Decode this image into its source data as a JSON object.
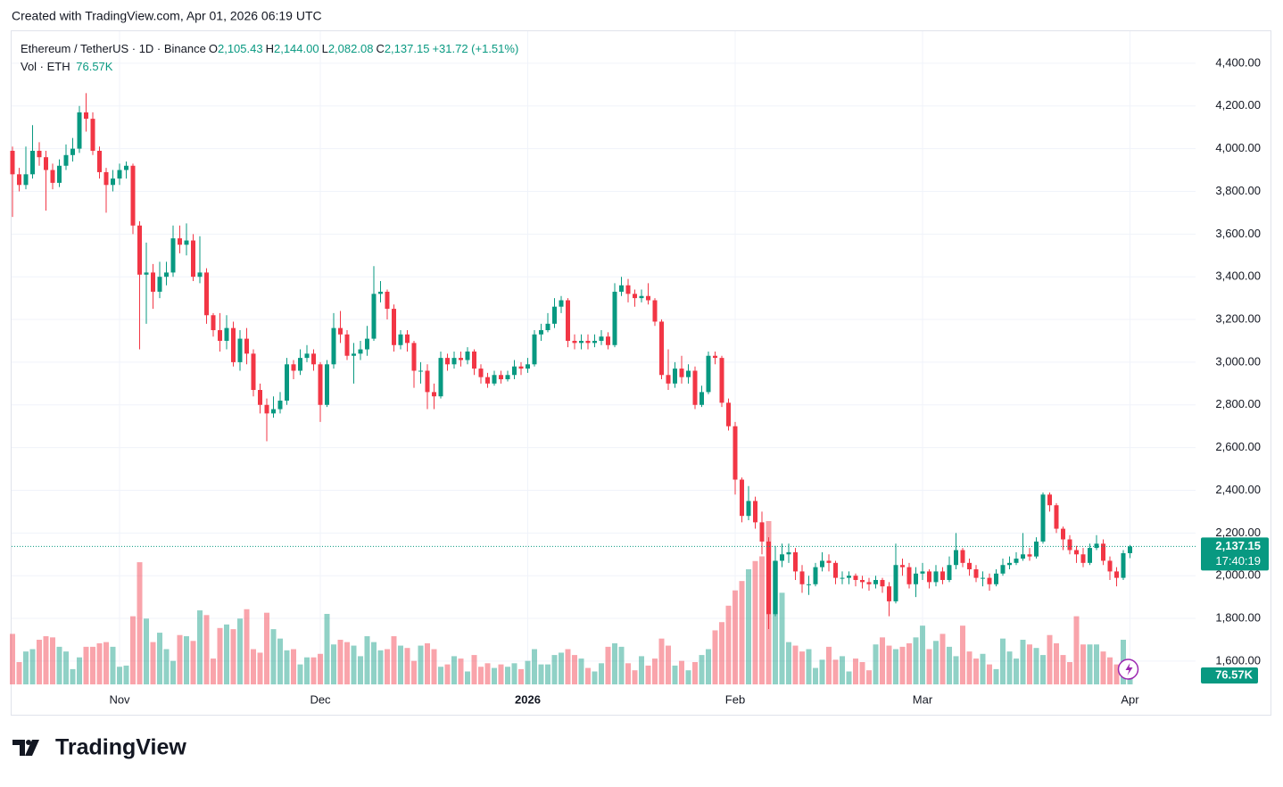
{
  "header": {
    "created": "Created with TradingView.com, Apr 01, 2026 06:19 UTC",
    "logo": "TradingView"
  },
  "chart_data": {
    "type": "candlestick",
    "title": "Ethereum / TetherUS · 1D · Binance",
    "ohlc_legend": [
      {
        "key": "O",
        "value": "2,105.43"
      },
      {
        "key": "H",
        "value": "2,144.00"
      },
      {
        "key": "L",
        "value": "2,082.08"
      },
      {
        "key": "C",
        "value": "2,137.15"
      }
    ],
    "change": "+31.72 (+1.51%)",
    "volume_title": "Vol · ETH",
    "volume_label": "76.57K",
    "last_price_label": "2,137.15",
    "countdown": "17:40:19",
    "up_color": "#089981",
    "down_color": "#f23645",
    "grid": true,
    "ylim": [
      1491,
      4550
    ],
    "yticks": [
      {
        "value": 1600,
        "label": "1,600.00"
      },
      {
        "value": 1800,
        "label": "1,800.00"
      },
      {
        "value": 2000,
        "label": "2,000.00"
      },
      {
        "value": 2200,
        "label": "2,200.00"
      },
      {
        "value": 2400,
        "label": "2,400.00"
      },
      {
        "value": 2600,
        "label": "2,600.00"
      },
      {
        "value": 2800,
        "label": "2,800.00"
      },
      {
        "value": 3000,
        "label": "3,000.00"
      },
      {
        "value": 3200,
        "label": "3,200.00"
      },
      {
        "value": 3400,
        "label": "3,400.00"
      },
      {
        "value": 3600,
        "label": "3,600.00"
      },
      {
        "value": 3800,
        "label": "3,800.00"
      },
      {
        "value": 4000,
        "label": "4,000.00"
      },
      {
        "value": 4200,
        "label": "4,200.00"
      },
      {
        "value": 4400,
        "label": "4,400.00"
      }
    ],
    "categories": [
      null,
      null,
      null,
      null,
      null,
      null,
      null,
      null,
      null,
      null,
      null,
      null,
      null,
      null,
      null,
      null,
      "Nov",
      null,
      null,
      null,
      null,
      null,
      null,
      null,
      null,
      null,
      null,
      null,
      null,
      null,
      null,
      null,
      null,
      null,
      null,
      null,
      null,
      null,
      null,
      null,
      null,
      null,
      null,
      null,
      null,
      null,
      "Dec",
      null,
      null,
      null,
      null,
      null,
      null,
      null,
      null,
      null,
      null,
      null,
      null,
      null,
      null,
      null,
      null,
      null,
      null,
      null,
      null,
      null,
      null,
      null,
      null,
      null,
      null,
      null,
      null,
      null,
      null,
      "2026",
      null,
      null,
      null,
      null,
      null,
      null,
      null,
      null,
      null,
      null,
      null,
      null,
      null,
      null,
      null,
      null,
      null,
      null,
      null,
      null,
      null,
      null,
      null,
      null,
      null,
      null,
      null,
      null,
      null,
      null,
      "Feb",
      null,
      null,
      null,
      null,
      null,
      null,
      null,
      null,
      null,
      null,
      null,
      null,
      null,
      null,
      null,
      null,
      null,
      null,
      null,
      null,
      null,
      null,
      null,
      null,
      null,
      null,
      null,
      "Mar",
      null,
      null,
      null,
      null,
      null,
      null,
      null,
      null,
      null,
      null,
      null,
      null,
      null,
      null,
      null,
      null,
      null,
      null,
      null,
      null,
      null,
      null,
      null,
      null,
      null,
      null,
      null,
      null,
      null,
      null,
      "Apr"
    ],
    "open": [
      3990,
      3880,
      3830,
      3880,
      3990,
      3960,
      3900,
      3840,
      3920,
      3970,
      4000,
      4170,
      4140,
      3990,
      3890,
      3830,
      3860,
      3900,
      3920,
      3640,
      3410,
      3420,
      3330,
      3400,
      3420,
      3580,
      3550,
      3570,
      3400,
      3420,
      3220,
      3150,
      3100,
      3160,
      3000,
      3110,
      3040,
      2870,
      2800,
      2760,
      2780,
      2820,
      2990,
      2960,
      3020,
      3040,
      2990,
      2800,
      2990,
      3160,
      3130,
      3030,
      3040,
      3060,
      3110,
      3320,
      3330,
      3250,
      3080,
      3130,
      3090,
      2960,
      2960,
      2860,
      2840,
      3020,
      2990,
      3020,
      3010,
      3050,
      2970,
      2930,
      2900,
      2940,
      2920,
      2940,
      2980,
      2970,
      2990,
      3130,
      3150,
      3180,
      3260,
      3290,
      3100,
      3090,
      3100,
      3090,
      3100,
      3120,
      3080,
      3330,
      3360,
      3320,
      3300,
      3310,
      3290,
      3190,
      2940,
      2900,
      2970,
      2930,
      2960,
      2800,
      2860,
      3030,
      3020,
      2810,
      2700,
      2450,
      2280,
      2350,
      2250,
      2160,
      1820,
      2070,
      2100,
      2110,
      2020,
      1960,
      1960,
      2040,
      2070,
      2060,
      1990,
      1990,
      2000,
      1980,
      1970,
      1960,
      1980,
      1950,
      1880,
      2050,
      2040,
      1960,
      2010,
      2020,
      1970,
      2020,
      1980,
      2050,
      2120,
      2060,
      2030,
      1990,
      1990,
      1960,
      2010,
      2050,
      2060,
      2080,
      2100,
      2090,
      2160,
      2380,
      2330,
      2220,
      2170,
      2120,
      2100,
      2060,
      2130,
      2150,
      2070,
      2020,
      1990,
      2105.43
    ],
    "high": [
      4010,
      3910,
      4010,
      4110,
      4030,
      3990,
      3930,
      3950,
      4020,
      4050,
      4200,
      4260,
      4170,
      4010,
      3910,
      3900,
      3930,
      3940,
      3930,
      3660,
      3560,
      3460,
      3470,
      3470,
      3640,
      3640,
      3650,
      3600,
      3590,
      3440,
      3230,
      3230,
      3220,
      3190,
      3150,
      3160,
      3060,
      2900,
      2830,
      2840,
      2860,
      3020,
      3010,
      3060,
      3080,
      3060,
      3000,
      3010,
      3230,
      3240,
      3150,
      3090,
      3100,
      3170,
      3450,
      3380,
      3340,
      3270,
      3150,
      3150,
      3100,
      3000,
      2990,
      2900,
      3050,
      3040,
      3050,
      3050,
      3070,
      3060,
      2990,
      2950,
      2960,
      2960,
      2960,
      3010,
      3000,
      3020,
      3150,
      3180,
      3230,
      3300,
      3310,
      3300,
      3130,
      3130,
      3130,
      3130,
      3150,
      3140,
      3370,
      3400,
      3390,
      3340,
      3340,
      3370,
      3300,
      3200,
      3060,
      3000,
      3030,
      2990,
      2980,
      2890,
      3050,
      3050,
      3030,
      2830,
      2720,
      2460,
      2420,
      2370,
      2300,
      2180,
      2140,
      2150,
      2150,
      2130,
      2050,
      2000,
      2060,
      2110,
      2100,
      2070,
      2020,
      2020,
      2010,
      2000,
      1990,
      2000,
      1990,
      1970,
      2150,
      2080,
      2060,
      2040,
      2060,
      2030,
      2050,
      2040,
      2090,
      2200,
      2130,
      2080,
      2050,
      2020,
      2010,
      2030,
      2080,
      2090,
      2110,
      2200,
      2130,
      2180,
      2390,
      2390,
      2340,
      2230,
      2190,
      2140,
      2130,
      2150,
      2190,
      2170,
      2090,
      2040,
      2120,
      2144
    ],
    "low": [
      3680,
      3800,
      3810,
      3860,
      3920,
      3710,
      3810,
      3820,
      3900,
      3940,
      3980,
      4080,
      3970,
      3860,
      3700,
      3800,
      3830,
      3860,
      3600,
      3060,
      3180,
      3250,
      3300,
      3360,
      3400,
      3510,
      3500,
      3380,
      3370,
      3180,
      3120,
      3050,
      3060,
      2980,
      2960,
      2990,
      2840,
      2760,
      2630,
      2740,
      2760,
      2800,
      2920,
      2940,
      3000,
      2960,
      2720,
      2790,
      2970,
      3090,
      3010,
      2900,
      3010,
      3030,
      3100,
      3280,
      3200,
      3050,
      3060,
      3050,
      2880,
      2900,
      2780,
      2780,
      2830,
      2960,
      2970,
      2980,
      2990,
      2940,
      2900,
      2880,
      2890,
      2900,
      2910,
      2920,
      2940,
      2950,
      2980,
      3100,
      3140,
      3160,
      3230,
      3070,
      3060,
      3060,
      3060,
      3070,
      3080,
      3060,
      3070,
      3310,
      3280,
      3260,
      3280,
      3270,
      3170,
      2920,
      2870,
      2880,
      2900,
      2900,
      2780,
      2790,
      2850,
      2990,
      2790,
      2680,
      2380,
      2250,
      2260,
      2220,
      2100,
      1750,
      1810,
      2040,
      2060,
      1980,
      1920,
      1910,
      1950,
      2020,
      2020,
      1960,
      1960,
      1960,
      1950,
      1940,
      1930,
      1940,
      1920,
      1810,
      1870,
      2000,
      1940,
      1900,
      1980,
      1940,
      1950,
      1960,
      1970,
      2030,
      2040,
      2000,
      1970,
      1950,
      1930,
      1950,
      2000,
      2030,
      2050,
      2070,
      2070,
      2080,
      2150,
      2300,
      2200,
      2120,
      2100,
      2060,
      2040,
      2050,
      2120,
      2050,
      1980,
      1950,
      1980,
      2082.08
    ],
    "close": [
      3880,
      3830,
      3880,
      3990,
      3960,
      3900,
      3840,
      3920,
      3970,
      4000,
      4170,
      4140,
      3990,
      3890,
      3830,
      3860,
      3900,
      3920,
      3640,
      3410,
      3420,
      3330,
      3400,
      3420,
      3580,
      3550,
      3570,
      3400,
      3420,
      3220,
      3150,
      3100,
      3160,
      3000,
      3110,
      3040,
      2870,
      2800,
      2760,
      2780,
      2820,
      2990,
      2960,
      3020,
      3040,
      2990,
      2800,
      2990,
      3160,
      3130,
      3030,
      3040,
      3060,
      3110,
      3320,
      3330,
      3250,
      3080,
      3130,
      3090,
      2960,
      2960,
      2860,
      2840,
      3020,
      2990,
      3020,
      3010,
      3050,
      2970,
      2930,
      2900,
      2940,
      2920,
      2940,
      2980,
      2970,
      2990,
      3130,
      3150,
      3180,
      3260,
      3290,
      3100,
      3090,
      3100,
      3090,
      3100,
      3120,
      3080,
      3330,
      3360,
      3320,
      3300,
      3310,
      3290,
      3190,
      2940,
      2900,
      2970,
      2930,
      2960,
      2800,
      2860,
      3030,
      3020,
      2810,
      2700,
      2450,
      2280,
      2350,
      2250,
      2160,
      1820,
      2070,
      2100,
      2110,
      2020,
      1960,
      1960,
      2040,
      2070,
      2060,
      1990,
      1990,
      2000,
      1980,
      1970,
      1960,
      1980,
      1950,
      1880,
      2050,
      2040,
      1960,
      2010,
      2020,
      1970,
      2020,
      1980,
      2050,
      2120,
      2060,
      2030,
      1990,
      1990,
      1960,
      2010,
      2050,
      2060,
      2080,
      2100,
      2090,
      2160,
      2380,
      2330,
      2220,
      2170,
      2120,
      2100,
      2060,
      2130,
      2150,
      2070,
      2020,
      1990,
      2105.43,
      2137.15
    ],
    "volume": [
      430,
      190,
      280,
      300,
      380,
      410,
      400,
      320,
      280,
      130,
      230,
      320,
      320,
      350,
      360,
      320,
      150,
      160,
      580,
      1040,
      560,
      360,
      440,
      300,
      200,
      420,
      410,
      370,
      630,
      590,
      220,
      480,
      510,
      470,
      560,
      640,
      300,
      270,
      610,
      470,
      390,
      290,
      300,
      170,
      230,
      230,
      260,
      600,
      340,
      380,
      360,
      330,
      240,
      410,
      360,
      290,
      300,
      410,
      330,
      310,
      200,
      330,
      350,
      300,
      150,
      170,
      240,
      220,
      110,
      250,
      150,
      180,
      140,
      170,
      150,
      180,
      130,
      200,
      300,
      170,
      170,
      250,
      270,
      300,
      250,
      220,
      140,
      110,
      180,
      320,
      350,
      320,
      180,
      120,
      240,
      160,
      220,
      390,
      330,
      160,
      200,
      120,
      190,
      250,
      300,
      460,
      530,
      670,
      800,
      880,
      980,
      1050,
      1090,
      1390,
      1050,
      780,
      360,
      330,
      280,
      300,
      140,
      210,
      320,
      210,
      240,
      110,
      220,
      190,
      120,
      340,
      400,
      330,
      300,
      320,
      350,
      400,
      500,
      300,
      370,
      430,
      320,
      240,
      500,
      280,
      220,
      260,
      170,
      130,
      390,
      280,
      220,
      380,
      340,
      310,
      250,
      420,
      350,
      250,
      190,
      580,
      340,
      340,
      340,
      280,
      230,
      170,
      380,
      76.57
    ]
  }
}
